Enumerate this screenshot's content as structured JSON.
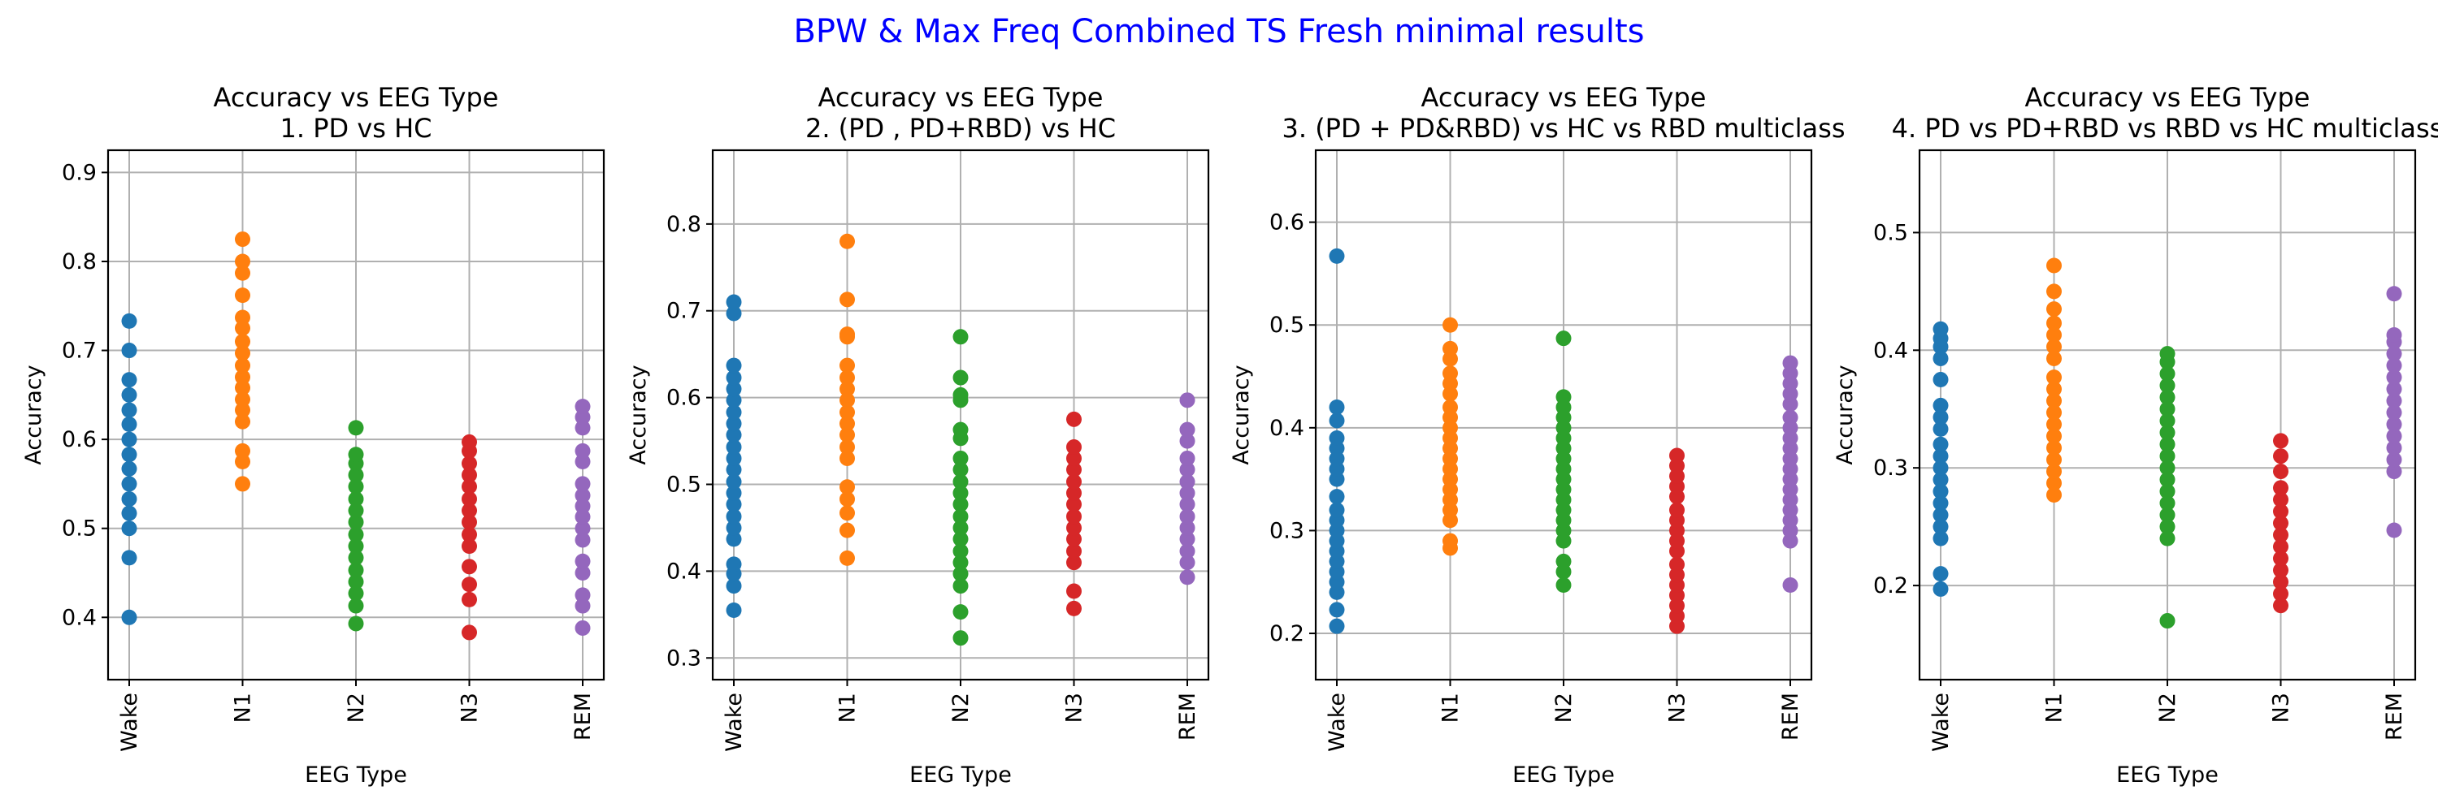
{
  "figure": {
    "suptitle": "BPW & Max Freq Combined TS Fresh minimal results",
    "suptitle_color": "#0000ff"
  },
  "chart_data": [
    {
      "type": "scatter",
      "title_line1": "Accuracy vs EEG Type",
      "title_line2": "1. PD vs HC",
      "xlabel": "EEG Type",
      "ylabel": "Accuracy",
      "categories": [
        "Wake",
        "N1",
        "N2",
        "N3",
        "REM"
      ],
      "yticks": [
        0.4,
        0.5,
        0.6,
        0.7,
        0.8,
        0.9
      ],
      "ylim": [
        0.33,
        0.925
      ],
      "grid": true,
      "series": [
        {
          "color": "#1f77b4",
          "values": [
            0.4,
            0.467,
            0.5,
            0.517,
            0.533,
            0.55,
            0.567,
            0.583,
            0.6,
            0.617,
            0.633,
            0.65,
            0.667,
            0.7,
            0.733
          ]
        },
        {
          "color": "#ff7f0e",
          "values": [
            0.55,
            0.575,
            0.587,
            0.62,
            0.633,
            0.645,
            0.658,
            0.67,
            0.683,
            0.697,
            0.71,
            0.725,
            0.737,
            0.762,
            0.787,
            0.8,
            0.825
          ]
        },
        {
          "color": "#2ca02c",
          "values": [
            0.393,
            0.413,
            0.427,
            0.44,
            0.453,
            0.467,
            0.48,
            0.493,
            0.507,
            0.52,
            0.533,
            0.547,
            0.56,
            0.573,
            0.583,
            0.613
          ]
        },
        {
          "color": "#d62728",
          "values": [
            0.383,
            0.42,
            0.437,
            0.457,
            0.48,
            0.493,
            0.507,
            0.52,
            0.533,
            0.547,
            0.56,
            0.573,
            0.587,
            0.597
          ]
        },
        {
          "color": "#9467bd",
          "values": [
            0.388,
            0.413,
            0.425,
            0.45,
            0.463,
            0.487,
            0.5,
            0.513,
            0.525,
            0.537,
            0.55,
            0.575,
            0.587,
            0.613,
            0.625,
            0.637
          ]
        }
      ]
    },
    {
      "type": "scatter",
      "title_line1": "Accuracy vs EEG Type",
      "title_line2": "2. (PD , PD+RBD) vs HC",
      "xlabel": "EEG Type",
      "ylabel": "Accuracy",
      "categories": [
        "Wake",
        "N1",
        "N2",
        "N3",
        "REM"
      ],
      "yticks": [
        0.3,
        0.4,
        0.5,
        0.6,
        0.7,
        0.8
      ],
      "ylim": [
        0.275,
        0.885
      ],
      "grid": true,
      "series": [
        {
          "color": "#1f77b4",
          "values": [
            0.355,
            0.383,
            0.397,
            0.408,
            0.437,
            0.45,
            0.463,
            0.477,
            0.49,
            0.503,
            0.517,
            0.53,
            0.543,
            0.557,
            0.57,
            0.583,
            0.597,
            0.61,
            0.623,
            0.637,
            0.697,
            0.71
          ]
        },
        {
          "color": "#ff7f0e",
          "values": [
            0.415,
            0.447,
            0.467,
            0.483,
            0.497,
            0.53,
            0.543,
            0.557,
            0.57,
            0.583,
            0.597,
            0.61,
            0.623,
            0.637,
            0.67,
            0.673,
            0.713,
            0.78
          ]
        },
        {
          "color": "#2ca02c",
          "values": [
            0.323,
            0.353,
            0.383,
            0.397,
            0.41,
            0.423,
            0.437,
            0.45,
            0.463,
            0.477,
            0.49,
            0.503,
            0.517,
            0.53,
            0.553,
            0.563,
            0.597,
            0.603,
            0.623,
            0.67
          ]
        },
        {
          "color": "#d62728",
          "values": [
            0.357,
            0.377,
            0.41,
            0.423,
            0.437,
            0.45,
            0.463,
            0.477,
            0.49,
            0.503,
            0.517,
            0.53,
            0.543,
            0.575
          ]
        },
        {
          "color": "#9467bd",
          "values": [
            0.393,
            0.41,
            0.423,
            0.437,
            0.45,
            0.463,
            0.477,
            0.49,
            0.503,
            0.517,
            0.53,
            0.55,
            0.563,
            0.597
          ]
        }
      ]
    },
    {
      "type": "scatter",
      "title_line1": "Accuracy vs EEG Type",
      "title_line2": "3. (PD + PD&RBD) vs HC vs RBD  multiclass",
      "xlabel": "EEG Type",
      "ylabel": "Accuracy",
      "categories": [
        "Wake",
        "N1",
        "N2",
        "N3",
        "REM"
      ],
      "yticks": [
        0.2,
        0.3,
        0.4,
        0.5,
        0.6
      ],
      "ylim": [
        0.155,
        0.67
      ],
      "grid": true,
      "series": [
        {
          "color": "#1f77b4",
          "values": [
            0.207,
            0.223,
            0.24,
            0.25,
            0.26,
            0.27,
            0.28,
            0.29,
            0.3,
            0.31,
            0.32,
            0.333,
            0.35,
            0.36,
            0.37,
            0.38,
            0.39,
            0.407,
            0.42,
            0.567
          ]
        },
        {
          "color": "#ff7f0e",
          "values": [
            0.283,
            0.29,
            0.31,
            0.32,
            0.33,
            0.34,
            0.35,
            0.36,
            0.37,
            0.38,
            0.39,
            0.4,
            0.41,
            0.42,
            0.433,
            0.443,
            0.453,
            0.467,
            0.477,
            0.5
          ]
        },
        {
          "color": "#2ca02c",
          "values": [
            0.247,
            0.26,
            0.27,
            0.29,
            0.3,
            0.31,
            0.32,
            0.33,
            0.34,
            0.35,
            0.36,
            0.37,
            0.38,
            0.39,
            0.4,
            0.41,
            0.42,
            0.43,
            0.487
          ]
        },
        {
          "color": "#d62728",
          "values": [
            0.207,
            0.217,
            0.227,
            0.237,
            0.247,
            0.257,
            0.267,
            0.28,
            0.29,
            0.3,
            0.31,
            0.32,
            0.333,
            0.343,
            0.353,
            0.363,
            0.373
          ]
        },
        {
          "color": "#9467bd",
          "values": [
            0.247,
            0.29,
            0.3,
            0.31,
            0.32,
            0.33,
            0.34,
            0.35,
            0.36,
            0.37,
            0.38,
            0.39,
            0.4,
            0.41,
            0.423,
            0.433,
            0.443,
            0.453,
            0.463
          ]
        }
      ]
    },
    {
      "type": "scatter",
      "title_line1": "Accuracy vs EEG Type",
      "title_line2": "4. PD vs PD+RBD vs RBD vs HC  multiclass",
      "xlabel": "EEG Type",
      "ylabel": "Accuracy",
      "categories": [
        "Wake",
        "N1",
        "N2",
        "N3",
        "REM"
      ],
      "yticks": [
        0.2,
        0.3,
        0.4,
        0.5
      ],
      "ylim": [
        0.12,
        0.57
      ],
      "grid": true,
      "series": [
        {
          "color": "#1f77b4",
          "values": [
            0.197,
            0.21,
            0.24,
            0.25,
            0.26,
            0.27,
            0.28,
            0.29,
            0.3,
            0.31,
            0.32,
            0.333,
            0.343,
            0.353,
            0.375,
            0.393,
            0.403,
            0.41,
            0.418
          ]
        },
        {
          "color": "#ff7f0e",
          "values": [
            0.277,
            0.287,
            0.297,
            0.307,
            0.317,
            0.327,
            0.337,
            0.347,
            0.357,
            0.367,
            0.377,
            0.393,
            0.403,
            0.413,
            0.423,
            0.435,
            0.45,
            0.472
          ]
        },
        {
          "color": "#2ca02c",
          "values": [
            0.17,
            0.24,
            0.25,
            0.26,
            0.27,
            0.28,
            0.29,
            0.3,
            0.31,
            0.32,
            0.33,
            0.34,
            0.35,
            0.36,
            0.37,
            0.38,
            0.39,
            0.397
          ]
        },
        {
          "color": "#d62728",
          "values": [
            0.183,
            0.193,
            0.203,
            0.213,
            0.223,
            0.233,
            0.243,
            0.253,
            0.263,
            0.273,
            0.283,
            0.297,
            0.31,
            0.323
          ]
        },
        {
          "color": "#9467bd",
          "values": [
            0.247,
            0.297,
            0.307,
            0.317,
            0.327,
            0.337,
            0.347,
            0.357,
            0.367,
            0.377,
            0.387,
            0.397,
            0.407,
            0.413,
            0.448
          ]
        }
      ]
    }
  ]
}
